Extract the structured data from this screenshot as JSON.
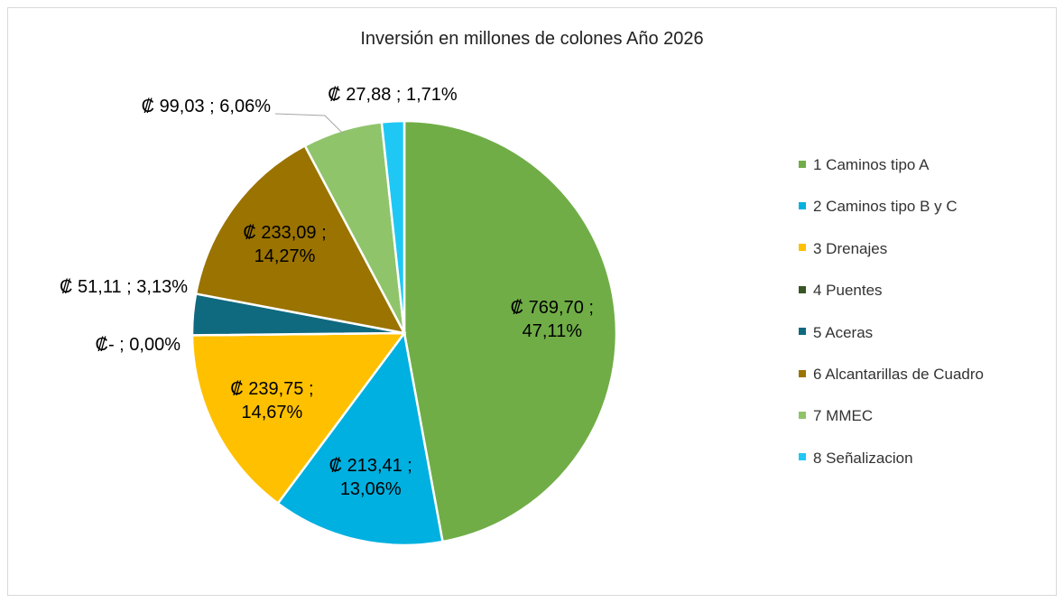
{
  "chart_data": {
    "type": "pie",
    "title": "Inversión en millones de colones Año 2026",
    "categories": [
      "1 Caminos tipo A",
      "2 Caminos tipo B y C",
      "3 Drenajes",
      "4 Puentes",
      "5 Aceras",
      "6 Alcantarillas de Cuadro",
      "7 MMEC",
      "8 Señalizacion"
    ],
    "values": [
      769.7,
      213.41,
      239.75,
      0,
      51.11,
      233.09,
      99.03,
      27.88
    ],
    "value_labels": [
      "₡ 769,70 ; 47,11%",
      "₡ 213,41 ; 13,06%",
      "₡ 239,75 ; 14,67%",
      "₡-   ; 0,00%",
      "₡ 51,11 ; 3,13%",
      "₡ 233,09 ; 14,27%",
      "₡ 99,03 ; 6,06%",
      "₡ 27,88 ; 1,71%"
    ],
    "colors": [
      "#70ad47",
      "#00b0e0",
      "#ffc000",
      "#375623",
      "#0f6a80",
      "#9a7300",
      "#8fc46b",
      "#1fc8f4"
    ],
    "legend": "right"
  }
}
